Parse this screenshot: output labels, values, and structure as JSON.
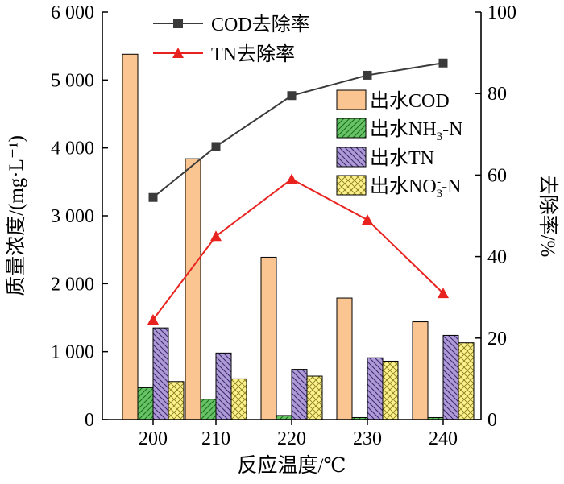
{
  "chart_data": {
    "type": "bar",
    "categories": [
      "200",
      "210",
      "220",
      "230",
      "240"
    ],
    "xlabel": "反应温度/℃",
    "ylabel": "质量浓度/(mg·L⁻¹)",
    "y2label": "去除率/%",
    "ylim": [
      0,
      6000
    ],
    "y2lim": [
      0,
      100
    ],
    "yticks": [
      "0",
      "1 000",
      "2 000",
      "3 000",
      "4 000",
      "5 000",
      "6 000"
    ],
    "y2ticks": [
      "0",
      "20",
      "40",
      "60",
      "80",
      "100"
    ],
    "bar_series": [
      {
        "name": "出水COD",
        "values": [
          5380,
          3840,
          2390,
          1790,
          1440
        ],
        "color": "#FAC591",
        "pattern": "solid"
      },
      {
        "name": "出水NH3-N",
        "values": [
          470,
          300,
          60,
          30,
          30
        ],
        "color": "#66C466",
        "pattern": "diag-right"
      },
      {
        "name": "出水TN",
        "values": [
          1350,
          980,
          740,
          910,
          1240
        ],
        "color": "#AE9BD6",
        "pattern": "diag-left"
      },
      {
        "name": "出水NO3--N",
        "values": [
          560,
          600,
          640,
          860,
          1130
        ],
        "color": "#FBF28C",
        "pattern": "crosshatch"
      }
    ],
    "line_series": [
      {
        "name": "COD去除率",
        "values": [
          54.5,
          67.0,
          79.5,
          84.5,
          87.5
        ],
        "color": "#3a3a3a",
        "marker": "square"
      },
      {
        "name": "TN去除率",
        "values": [
          24.5,
          45.0,
          59.0,
          49.0,
          31.0
        ],
        "color": "#E8231F",
        "marker": "triangle"
      }
    ],
    "legend": {
      "lines_placement": "top-center",
      "bars_placement": "upper-right",
      "line_labels": [
        "COD去除率",
        "TN去除率"
      ],
      "bar_labels": {
        "cod": "出水COD",
        "nh3_pre": "出水NH",
        "nh3_sub": "3",
        "nh3_post": "-N",
        "tn": "出水TN",
        "no3_pre": "出水NO",
        "no3_sub": "3",
        "no3_sup": "-",
        "no3_post": "-N"
      }
    }
  }
}
